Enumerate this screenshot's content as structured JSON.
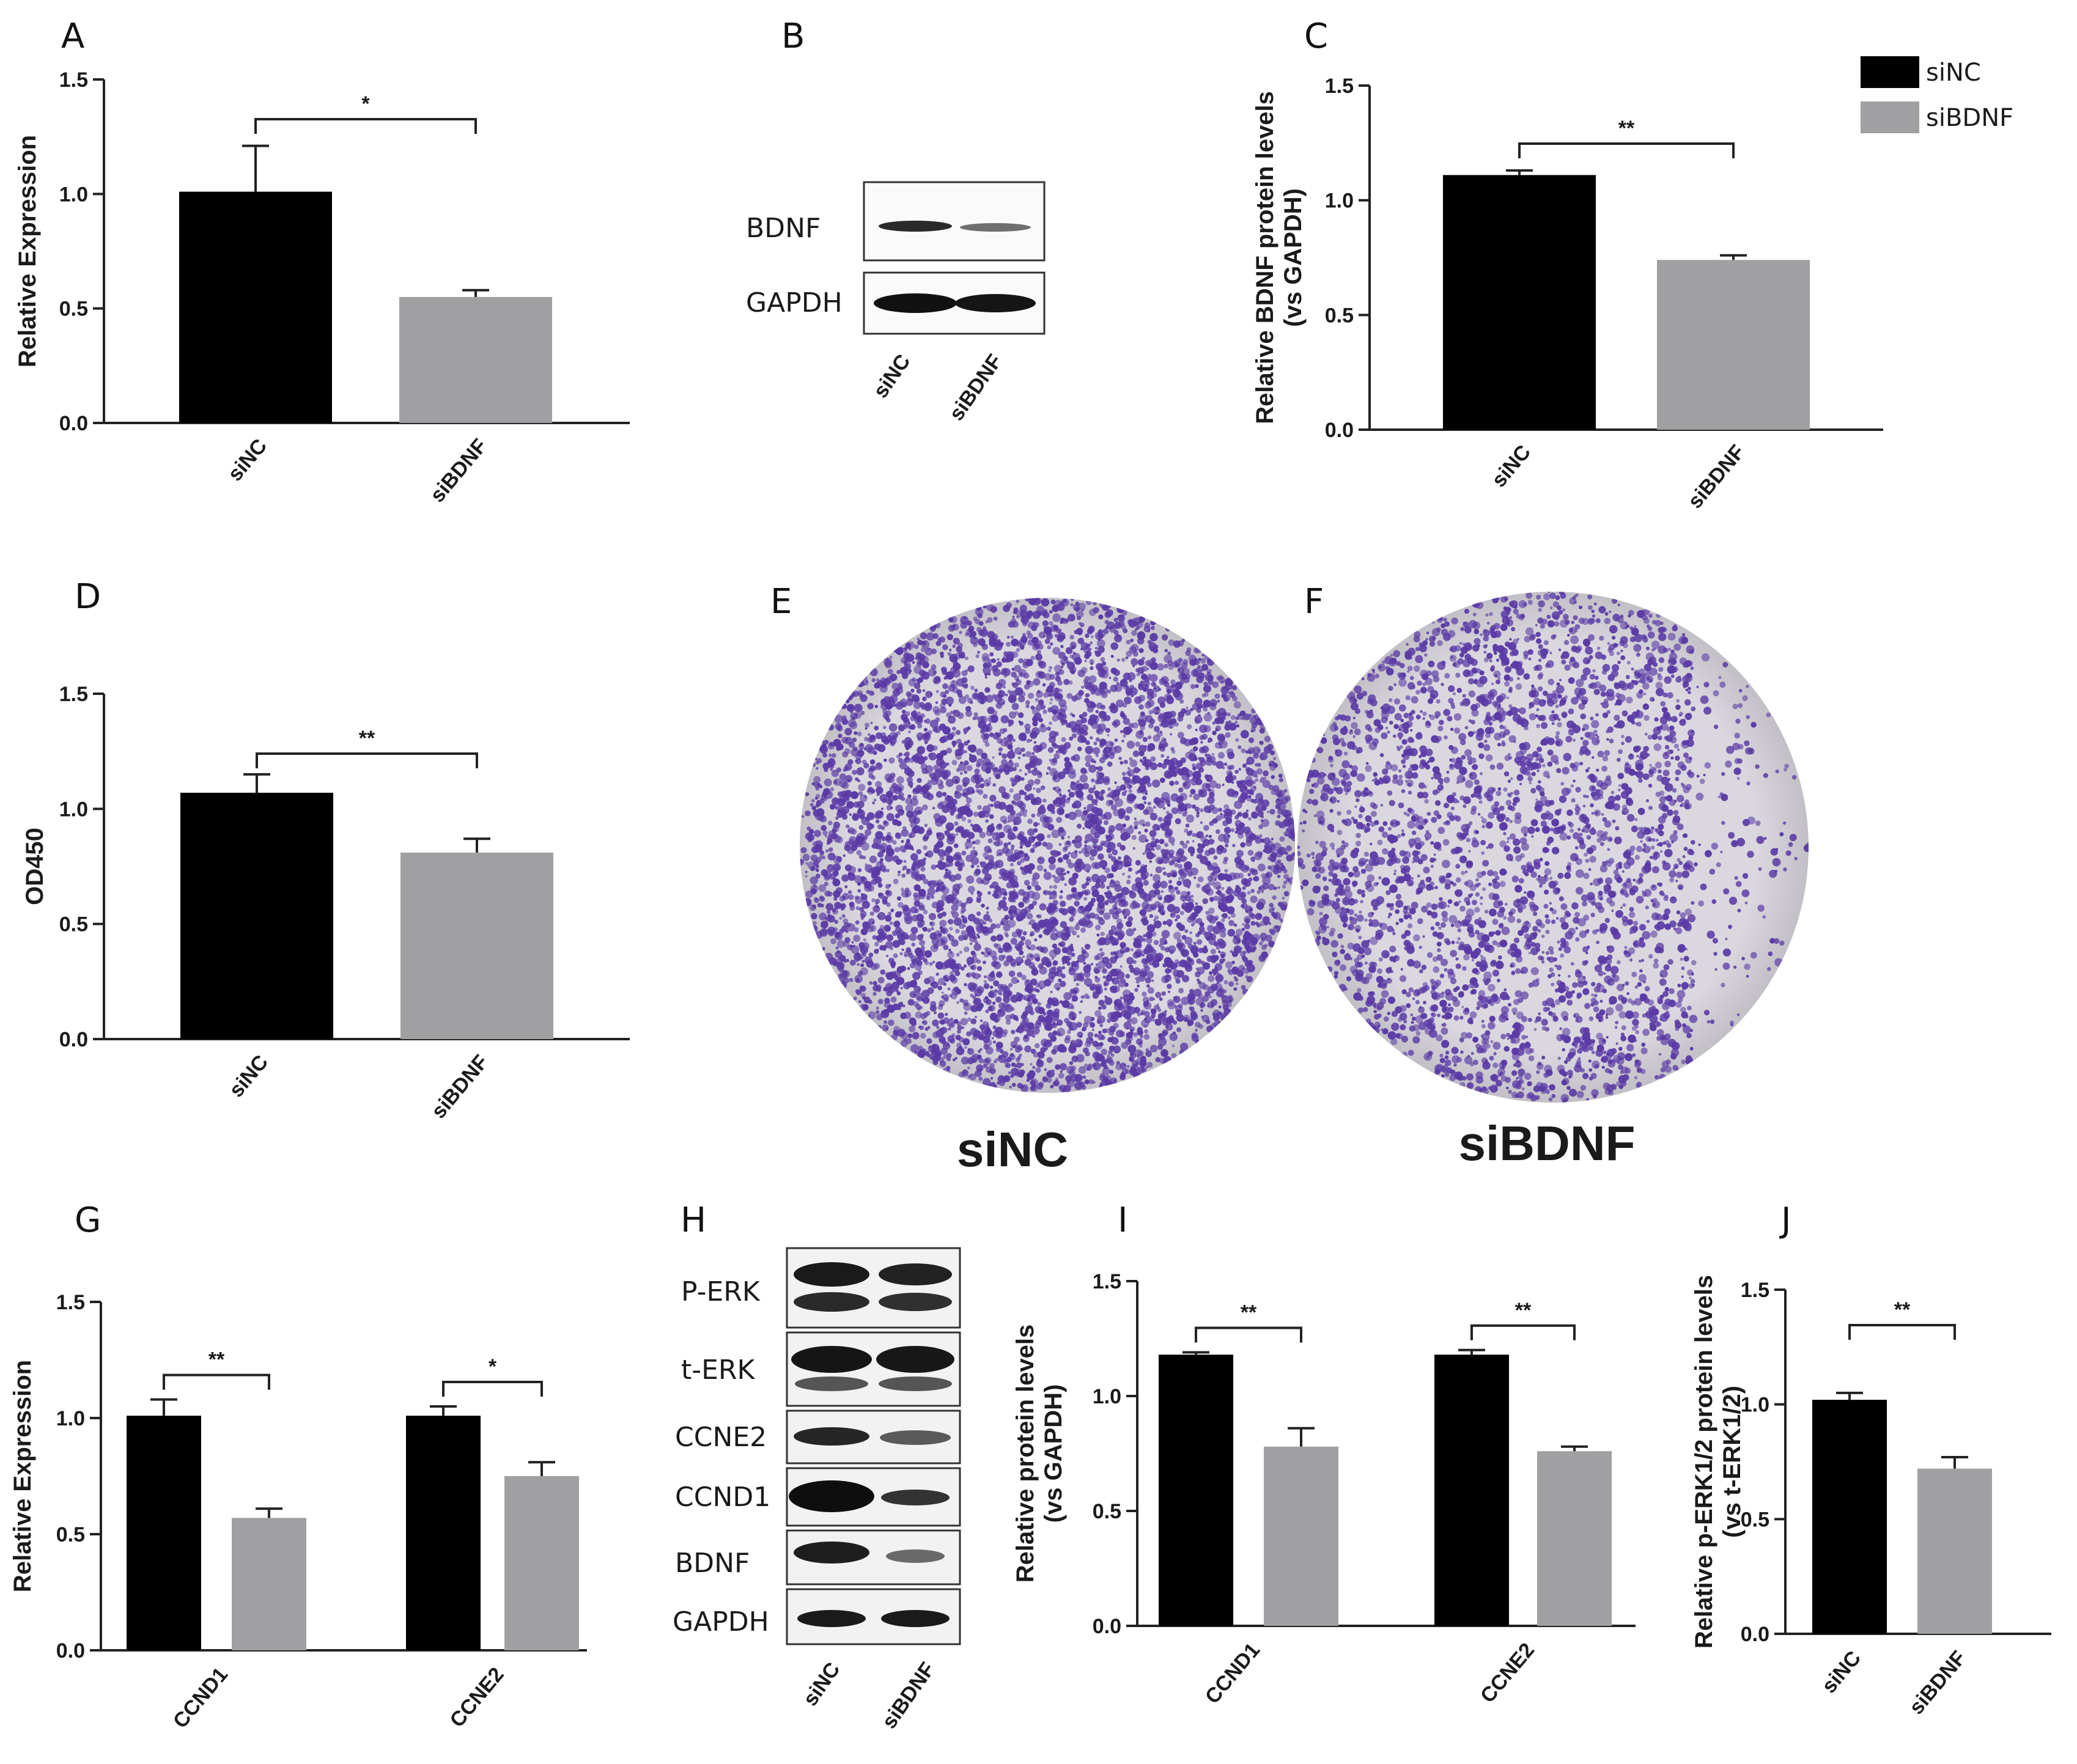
{
  "colors": {
    "siNC": "#000000",
    "siBDNF": "#a0a0a3",
    "stain": "#5b3aa6",
    "plate": "#d8d6dc"
  },
  "legend": [
    {
      "label": "siNC",
      "color": "#000000"
    },
    {
      "label": "siBDNF",
      "color": "#a0a0a3"
    }
  ],
  "panels": {
    "A": {
      "letter": "A"
    },
    "B": {
      "letter": "B"
    },
    "C": {
      "letter": "C"
    },
    "D": {
      "letter": "D"
    },
    "E": {
      "letter": "E",
      "label": "siNC"
    },
    "F": {
      "letter": "F",
      "label": "siBDNF"
    },
    "G": {
      "letter": "G"
    },
    "H": {
      "letter": "H"
    },
    "I": {
      "letter": "I"
    },
    "J": {
      "letter": "J"
    }
  },
  "blots": {
    "B": {
      "rows": [
        "BDNF",
        "GAPDH"
      ],
      "lanes": [
        "siNC",
        "siBDNF"
      ]
    },
    "H": {
      "rows": [
        "P-ERK",
        "t-ERK",
        "CCNE2",
        "CCND1",
        "BDNF",
        "GAPDH"
      ],
      "lanes": [
        "siNC",
        "siBDNF"
      ]
    }
  },
  "chart_data": [
    {
      "id": "A",
      "type": "bar",
      "categories": [
        "siNC",
        "siBDNF"
      ],
      "values": [
        1.01,
        0.55
      ],
      "errors": [
        0.2,
        0.03
      ],
      "ylabel": [
        "Relative Expression"
      ],
      "ylim": [
        0,
        1.5
      ],
      "yticks": [
        "0.0",
        "0.5",
        "1.0",
        "1.5"
      ],
      "significance": [
        {
          "from": 0,
          "to": 1,
          "label": "*"
        }
      ]
    },
    {
      "id": "C",
      "type": "bar",
      "categories": [
        "siNC",
        "siBDNF"
      ],
      "values": [
        1.11,
        0.74
      ],
      "errors": [
        0.02,
        0.02
      ],
      "ylabel": [
        "Relative BDNF protein levels",
        "(vs GAPDH)"
      ],
      "ylim": [
        0,
        1.5
      ],
      "yticks": [
        "0.0",
        "0.5",
        "1.0",
        "1.5"
      ],
      "significance": [
        {
          "from": 0,
          "to": 1,
          "label": "**"
        }
      ]
    },
    {
      "id": "D",
      "type": "bar",
      "categories": [
        "siNC",
        "siBDNF"
      ],
      "values": [
        1.07,
        0.81
      ],
      "errors": [
        0.08,
        0.06
      ],
      "ylabel": [
        "OD450"
      ],
      "ylim": [
        0,
        1.5
      ],
      "yticks": [
        "0.0",
        "0.5",
        "1.0",
        "1.5"
      ],
      "significance": [
        {
          "from": 0,
          "to": 1,
          "label": "**"
        }
      ]
    },
    {
      "id": "G",
      "type": "bar",
      "categories": [
        "CCND1",
        "CCNE2"
      ],
      "series": [
        {
          "name": "siNC",
          "values": [
            1.01,
            1.01
          ],
          "errors": [
            0.07,
            0.04
          ]
        },
        {
          "name": "siBDNF",
          "values": [
            0.57,
            0.75
          ],
          "errors": [
            0.04,
            0.06
          ]
        }
      ],
      "ylabel": [
        "Relative Expression"
      ],
      "ylim": [
        0,
        1.5
      ],
      "yticks": [
        "0.0",
        "0.5",
        "1.0",
        "1.5"
      ],
      "significance": [
        {
          "category": 0,
          "label": "**"
        },
        {
          "category": 1,
          "label": "*"
        }
      ]
    },
    {
      "id": "I",
      "type": "bar",
      "categories": [
        "CCND1",
        "CCNE2"
      ],
      "series": [
        {
          "name": "siNC",
          "values": [
            1.18,
            1.18
          ],
          "errors": [
            0.01,
            0.02
          ]
        },
        {
          "name": "siBDNF",
          "values": [
            0.78,
            0.76
          ],
          "errors": [
            0.08,
            0.02
          ]
        }
      ],
      "ylabel": [
        "Relative protein levels",
        "(vs GAPDH)"
      ],
      "ylim": [
        0,
        1.5
      ],
      "yticks": [
        "0.0",
        "0.5",
        "1.0",
        "1.5"
      ],
      "significance": [
        {
          "category": 0,
          "label": "**"
        },
        {
          "category": 1,
          "label": "**"
        }
      ]
    },
    {
      "id": "J",
      "type": "bar",
      "categories": [
        "siNC",
        "siBDNF"
      ],
      "values": [
        1.02,
        0.72
      ],
      "errors": [
        0.03,
        0.05
      ],
      "ylabel": [
        "Relative p-ERK1/2 protein levels",
        "(vs t-ERK1/2)"
      ],
      "ylim": [
        0,
        1.5
      ],
      "yticks": [
        "0.0",
        "0.5",
        "1.0",
        "1.5"
      ],
      "significance": [
        {
          "from": 0,
          "to": 1,
          "label": "**"
        }
      ]
    }
  ]
}
